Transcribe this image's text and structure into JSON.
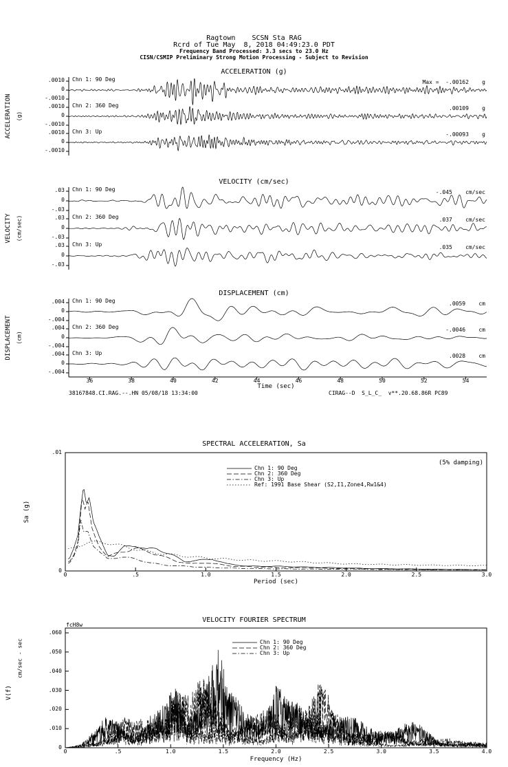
{
  "colors": {
    "ink": "#000000",
    "bg": "#ffffff"
  },
  "header": {
    "line1": "Ragtown    SCSN Sta RAG",
    "line2": "Rcrd of Tue May  8, 2018 04:49:23.0 PDT",
    "line3": "Frequency Band Processed: 3.3 secs to 23.0 Hz",
    "line4": "CISN/CSMIP Preliminary Strong Motion Processing - Subject to Revision"
  },
  "footer": {
    "left": "38167848.CI.RAG.--.HN 05/08/18 13:34:00",
    "right": "CIRAG--D  S_L_C_  v**.20.68.86R PC89"
  },
  "chart_data": [
    {
      "type": "line",
      "id": "accel",
      "title": "ACCELERATION (g)",
      "side_label": "ACCELERATION",
      "side_unit": "(g)",
      "x_range": [
        35,
        55
      ],
      "units": "g",
      "y_tick_labels": [
        ".0010",
        "0",
        "-.0010"
      ],
      "channels": [
        {
          "label": "Chn 1: 90 Deg",
          "max_label": "Max =  -.00162    g",
          "peak": -0.00162
        },
        {
          "label": "Chn 2: 360 Deg",
          "max_label": ".00109    g",
          "peak": 0.00109
        },
        {
          "label": "Chn 3: Up",
          "max_label": "-.00093    g",
          "peak": -0.00093
        }
      ],
      "wave": {
        "seed": 11,
        "fmin": 2.2,
        "fmax": 8.5,
        "ncomp": 70,
        "samples": 1600,
        "amp": [
          21,
          14,
          12
        ],
        "envelope": [
          [
            35,
            0.06
          ],
          [
            37.5,
            0.07
          ],
          [
            38.6,
            0.1
          ],
          [
            39.3,
            0.45
          ],
          [
            39.9,
            1.0
          ],
          [
            40.8,
            0.95
          ],
          [
            41.8,
            0.6
          ],
          [
            42.8,
            0.4
          ],
          [
            44,
            0.3
          ],
          [
            46,
            0.25
          ],
          [
            48,
            0.22
          ],
          [
            51,
            0.2
          ],
          [
            55,
            0.17
          ]
        ]
      }
    },
    {
      "type": "line",
      "id": "vel",
      "title": "VELOCITY (cm/sec)",
      "side_label": "VELOCITY",
      "side_unit": "(cm/sec)",
      "x_range": [
        35,
        55
      ],
      "units": "cm/sec",
      "y_tick_labels": [
        ".03",
        "0",
        "-.03"
      ],
      "channels": [
        {
          "label": "Chn 1: 90 Deg",
          "max_label": "-.045    cm/sec",
          "peak": -0.045
        },
        {
          "label": "Chn 2: 360 Deg",
          "max_label": ".037    cm/sec",
          "peak": 0.037
        },
        {
          "label": "Chn 3: Up",
          "max_label": ".035    cm/sec",
          "peak": 0.035
        }
      ],
      "wave": {
        "seed": 31,
        "fmin": 0.5,
        "fmax": 3.2,
        "ncomp": 40,
        "samples": 1100,
        "amp": [
          20,
          16,
          15
        ],
        "envelope": [
          [
            35,
            0.05
          ],
          [
            37.5,
            0.07
          ],
          [
            38.6,
            0.25
          ],
          [
            39.4,
            0.85
          ],
          [
            40.3,
            1.0
          ],
          [
            41.5,
            0.9
          ],
          [
            42.6,
            0.7
          ],
          [
            44,
            0.55
          ],
          [
            45.5,
            0.5
          ],
          [
            47,
            0.45
          ],
          [
            49,
            0.42
          ],
          [
            52,
            0.38
          ],
          [
            55,
            0.33
          ]
        ]
      }
    },
    {
      "type": "line",
      "id": "disp",
      "title": "DISPLACEMENT (cm)",
      "side_label": "DISPLACEMENT",
      "side_unit": "(cm)",
      "x_range": [
        35,
        55
      ],
      "units": "cm",
      "xlabel": "Time (sec)",
      "x_ticks": [
        36,
        38,
        40,
        42,
        44,
        46,
        48,
        50,
        52,
        54
      ],
      "y_tick_labels": [
        ".004",
        "0",
        "-.004"
      ],
      "channels": [
        {
          "label": "Chn 1: 90 Deg",
          "max_label": ".0059    cm",
          "peak": 0.0059
        },
        {
          "label": "Chn 2: 360 Deg",
          "max_label": "-.0046    cm",
          "peak": -0.0046
        },
        {
          "label": "Chn 3: Up",
          "max_label": ".0028    cm",
          "peak": 0.0028
        }
      ],
      "wave": {
        "seed": 51,
        "fmin": 0.22,
        "fmax": 1.1,
        "ncomp": 18,
        "samples": 800,
        "amp": [
          19,
          15,
          9
        ],
        "envelope": [
          [
            35,
            0.04
          ],
          [
            37.8,
            0.1
          ],
          [
            38.8,
            0.5
          ],
          [
            39.6,
            0.9
          ],
          [
            40.5,
            1.0
          ],
          [
            41.6,
            0.85
          ],
          [
            43,
            0.6
          ],
          [
            44.5,
            0.55
          ],
          [
            46,
            0.5
          ],
          [
            48,
            0.45
          ],
          [
            50,
            0.42
          ],
          [
            52.5,
            0.4
          ],
          [
            55,
            0.35
          ]
        ]
      }
    },
    {
      "type": "line",
      "id": "sa",
      "title": "SPECTRAL ACCELERATION, Sa",
      "annotation": "(5% damping)",
      "xlabel": "Period (sec)",
      "ylabel": "Sa (g)",
      "x_range": [
        0,
        3
      ],
      "y_range": [
        0,
        0.01
      ],
      "x_ticks": [
        0,
        0.5,
        1,
        1.5,
        2,
        2.5,
        3
      ],
      "x_tick_labels": [
        "0",
        ".5",
        "1.0",
        "1.5",
        "2.0",
        "2.5",
        "3.0"
      ],
      "y_ticks": [
        0.01,
        0
      ],
      "y_tick_labels": [
        ".01",
        "0"
      ],
      "series": [
        {
          "name": "Chn 1: 90 Deg",
          "dash": "solid",
          "points": [
            [
              0.03,
              0.001
            ],
            [
              0.06,
              0.0018
            ],
            [
              0.09,
              0.003
            ],
            [
              0.11,
              0.0055
            ],
            [
              0.13,
              0.0076
            ],
            [
              0.15,
              0.006
            ],
            [
              0.17,
              0.0064
            ],
            [
              0.2,
              0.004
            ],
            [
              0.24,
              0.0028
            ],
            [
              0.3,
              0.0014
            ],
            [
              0.35,
              0.0013
            ],
            [
              0.42,
              0.002
            ],
            [
              0.5,
              0.0022
            ],
            [
              0.58,
              0.0018
            ],
            [
              0.65,
              0.0019
            ],
            [
              0.75,
              0.0014
            ],
            [
              0.85,
              0.0008
            ],
            [
              0.95,
              0.0009
            ],
            [
              1.05,
              0.001
            ],
            [
              1.15,
              0.0006
            ],
            [
              1.3,
              0.0004
            ],
            [
              1.5,
              0.0004
            ],
            [
              1.8,
              0.0003
            ],
            [
              2.2,
              0.0002
            ],
            [
              2.6,
              0.00015
            ],
            [
              3,
              0.0001
            ]
          ]
        },
        {
          "name": "Chn 2: 360 Deg",
          "dash": "long",
          "points": [
            [
              0.03,
              0.0008
            ],
            [
              0.06,
              0.0014
            ],
            [
              0.09,
              0.0026
            ],
            [
              0.12,
              0.0062
            ],
            [
              0.14,
              0.005
            ],
            [
              0.16,
              0.0056
            ],
            [
              0.19,
              0.0035
            ],
            [
              0.24,
              0.0022
            ],
            [
              0.3,
              0.0012
            ],
            [
              0.4,
              0.0016
            ],
            [
              0.5,
              0.0019
            ],
            [
              0.6,
              0.0016
            ],
            [
              0.7,
              0.0012
            ],
            [
              0.8,
              0.0008
            ],
            [
              0.9,
              0.0006
            ],
            [
              1,
              0.0007
            ],
            [
              1.2,
              0.0004
            ],
            [
              1.5,
              0.0003
            ],
            [
              2,
              0.0002
            ],
            [
              2.5,
              0.00012
            ],
            [
              3,
              0.0001
            ]
          ]
        },
        {
          "name": "Chn 3: Up",
          "dash": "dashdot",
          "points": [
            [
              0.03,
              0.0007
            ],
            [
              0.06,
              0.0012
            ],
            [
              0.09,
              0.002
            ],
            [
              0.11,
              0.0042
            ],
            [
              0.13,
              0.0032
            ],
            [
              0.16,
              0.0035
            ],
            [
              0.2,
              0.0022
            ],
            [
              0.25,
              0.0015
            ],
            [
              0.3,
              0.001
            ],
            [
              0.4,
              0.0012
            ],
            [
              0.5,
              0.001
            ],
            [
              0.6,
              0.0007
            ],
            [
              0.7,
              0.0005
            ],
            [
              0.85,
              0.0004
            ],
            [
              1,
              0.0003
            ],
            [
              1.3,
              0.0002
            ],
            [
              1.8,
              0.00015
            ],
            [
              2.5,
              0.0001
            ],
            [
              3,
              8e-05
            ]
          ]
        },
        {
          "name": "Ref: 1991 Base Shear (S2,I1,Zone4,Rw1&4)",
          "dash": "dot",
          "points": [
            [
              0.03,
              0.0018
            ],
            [
              0.15,
              0.0024
            ],
            [
              0.3,
              0.0024
            ],
            [
              0.4,
              0.0021
            ],
            [
              0.6,
              0.0016
            ],
            [
              0.8,
              0.0013
            ],
            [
              1,
              0.0011
            ],
            [
              1.3,
              0.0009
            ],
            [
              1.6,
              0.0008
            ],
            [
              2,
              0.0006
            ],
            [
              2.5,
              0.0005
            ],
            [
              3,
              0.00045
            ]
          ]
        }
      ]
    },
    {
      "type": "line",
      "id": "fourier",
      "title": "VELOCITY FOURIER SPECTRUM",
      "corner_tag": "fcH8w",
      "xlabel": "Frequency (Hz)",
      "ylabel": "V(f)",
      "ylabel_units": "cm/sec - sec",
      "x_range": [
        0,
        4
      ],
      "y_range": [
        0,
        0.06
      ],
      "x_ticks": [
        0,
        0.5,
        1,
        1.5,
        2,
        2.5,
        3,
        3.5,
        4
      ],
      "x_tick_labels": [
        "0",
        ".5",
        "1.0",
        "1.5",
        "2.0",
        "2.5",
        "3.0",
        "3.5",
        "4.0"
      ],
      "y_ticks": [
        0.06,
        0.05,
        0.04,
        0.03,
        0.02,
        0.01,
        0
      ],
      "y_tick_labels": [
        ".060",
        ".050",
        ".040",
        ".030",
        ".020",
        ".010",
        "0"
      ],
      "envelope": [
        [
          0,
          0
        ],
        [
          0.15,
          0.002
        ],
        [
          0.3,
          0.01
        ],
        [
          0.45,
          0.025
        ],
        [
          0.55,
          0.034
        ],
        [
          0.65,
          0.024
        ],
        [
          0.8,
          0.028
        ],
        [
          0.95,
          0.03
        ],
        [
          1.05,
          0.05
        ],
        [
          1.15,
          0.032
        ],
        [
          1.3,
          0.038
        ],
        [
          1.45,
          0.044
        ],
        [
          1.55,
          0.026
        ],
        [
          1.7,
          0.028
        ],
        [
          1.85,
          0.03
        ],
        [
          2,
          0.048
        ],
        [
          2.1,
          0.034
        ],
        [
          2.25,
          0.04
        ],
        [
          2.4,
          0.046
        ],
        [
          2.55,
          0.024
        ],
        [
          2.7,
          0.015
        ],
        [
          2.9,
          0.012
        ],
        [
          3.1,
          0.011
        ],
        [
          3.3,
          0.014
        ],
        [
          3.5,
          0.011
        ],
        [
          3.7,
          0.007
        ],
        [
          3.9,
          0.004
        ],
        [
          4,
          0.003
        ]
      ],
      "series": [
        {
          "name": "Chn 1: 90 Deg",
          "dash": "solid",
          "scale": 1.0,
          "seed": 21
        },
        {
          "name": "Chn 2: 360 Deg",
          "dash": "long",
          "scale": 0.8,
          "seed": 22
        },
        {
          "name": "Chn 3: Up",
          "dash": "dashdot",
          "scale": 0.5,
          "seed": 23
        }
      ]
    }
  ]
}
